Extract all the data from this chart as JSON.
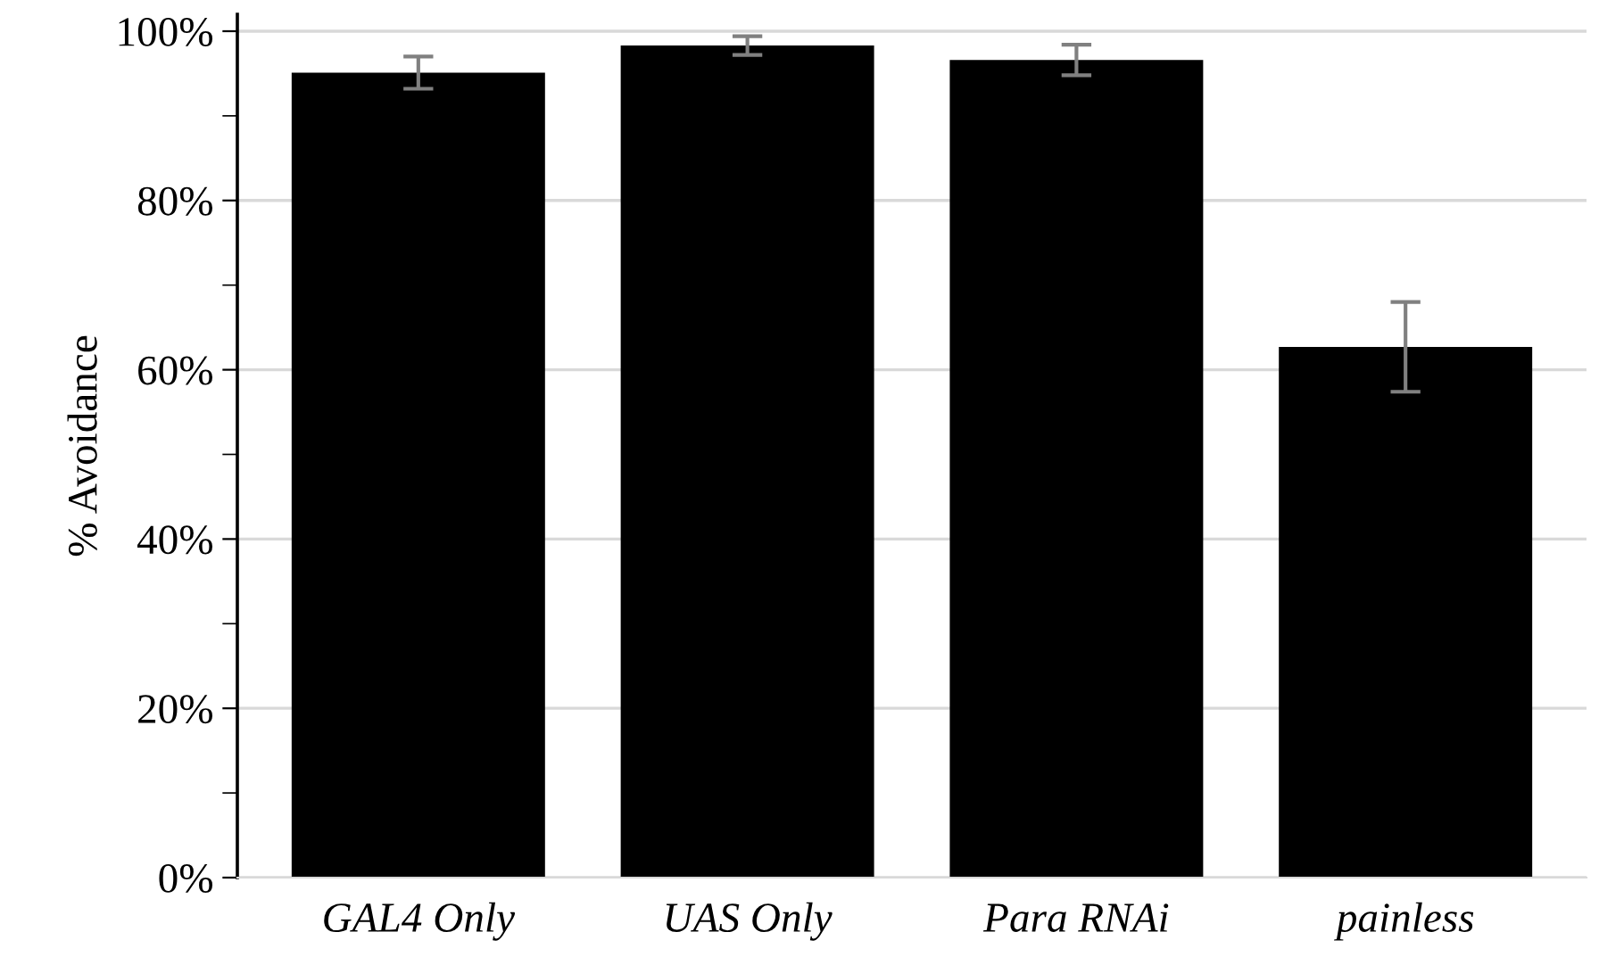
{
  "chart_data": {
    "type": "bar",
    "ylabel": "% Avoidance",
    "categories": [
      "GAL4 Only",
      "UAS Only",
      "Para RNAi",
      "painless"
    ],
    "values": [
      95.1,
      98.3,
      96.6,
      62.7
    ],
    "errors": [
      1.9,
      1.1,
      1.8,
      5.3
    ],
    "color": "#000000",
    "ylim": [
      0,
      102
    ],
    "yticks": [
      {
        "value": 0,
        "label": "0%"
      },
      {
        "value": 10,
        "label": null
      },
      {
        "value": 20,
        "label": "20%"
      },
      {
        "value": 30,
        "label": null
      },
      {
        "value": 40,
        "label": "40%"
      },
      {
        "value": 50,
        "label": null
      },
      {
        "value": 60,
        "label": "60%"
      },
      {
        "value": 70,
        "label": null
      },
      {
        "value": 80,
        "label": "80%"
      },
      {
        "value": 90,
        "label": null
      },
      {
        "value": 100,
        "label": "100%"
      }
    ],
    "grid": "y",
    "legend": false
  }
}
